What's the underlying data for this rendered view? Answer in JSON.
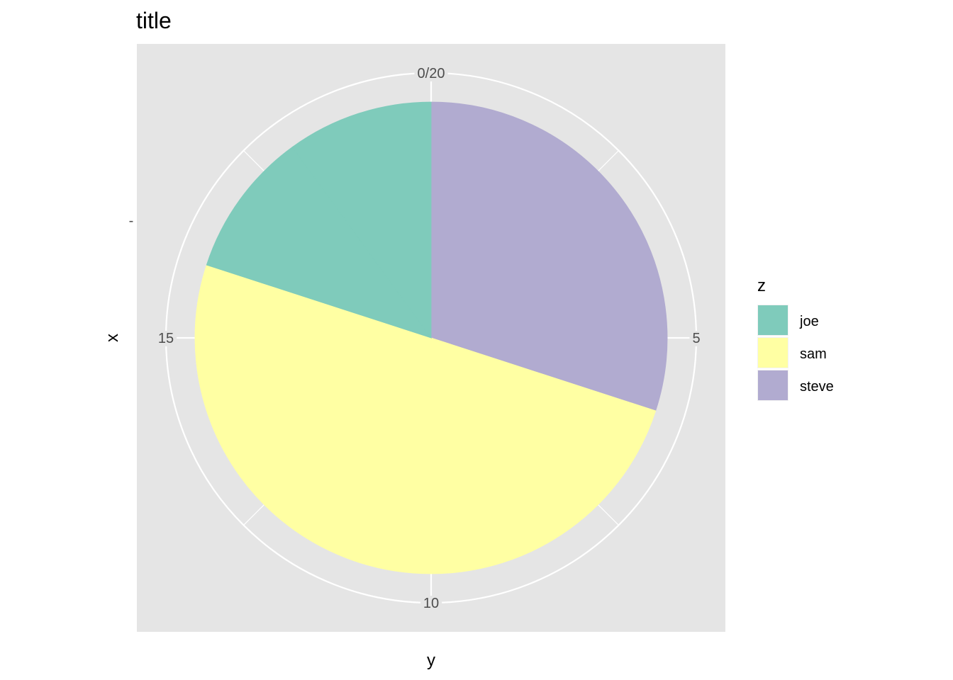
{
  "chart_data": {
    "type": "pie",
    "title": "title",
    "xlabel": "y",
    "ylabel": "x",
    "x_tick_label": "-",
    "theta_range": [
      0,
      20
    ],
    "theta_ticks": [
      {
        "value": 0,
        "label": "0/20"
      },
      {
        "value": 5,
        "label": "5"
      },
      {
        "value": 10,
        "label": "10"
      },
      {
        "value": 15,
        "label": "15"
      }
    ],
    "slices": [
      {
        "group": "steve",
        "value": 6
      },
      {
        "group": "sam",
        "value": 4
      },
      {
        "group": "sam",
        "value": 6
      },
      {
        "group": "joe",
        "value": 2
      },
      {
        "group": "joe",
        "value": 2
      }
    ],
    "legend": {
      "title": "z",
      "position": "right",
      "entries": [
        {
          "label": "joe",
          "color": "#7FCBBB"
        },
        {
          "label": "sam",
          "color": "#FFFFA3"
        },
        {
          "label": "steve",
          "color": "#B1ABD0"
        }
      ]
    },
    "panel_background": "#E5E5E5",
    "grid": true
  }
}
